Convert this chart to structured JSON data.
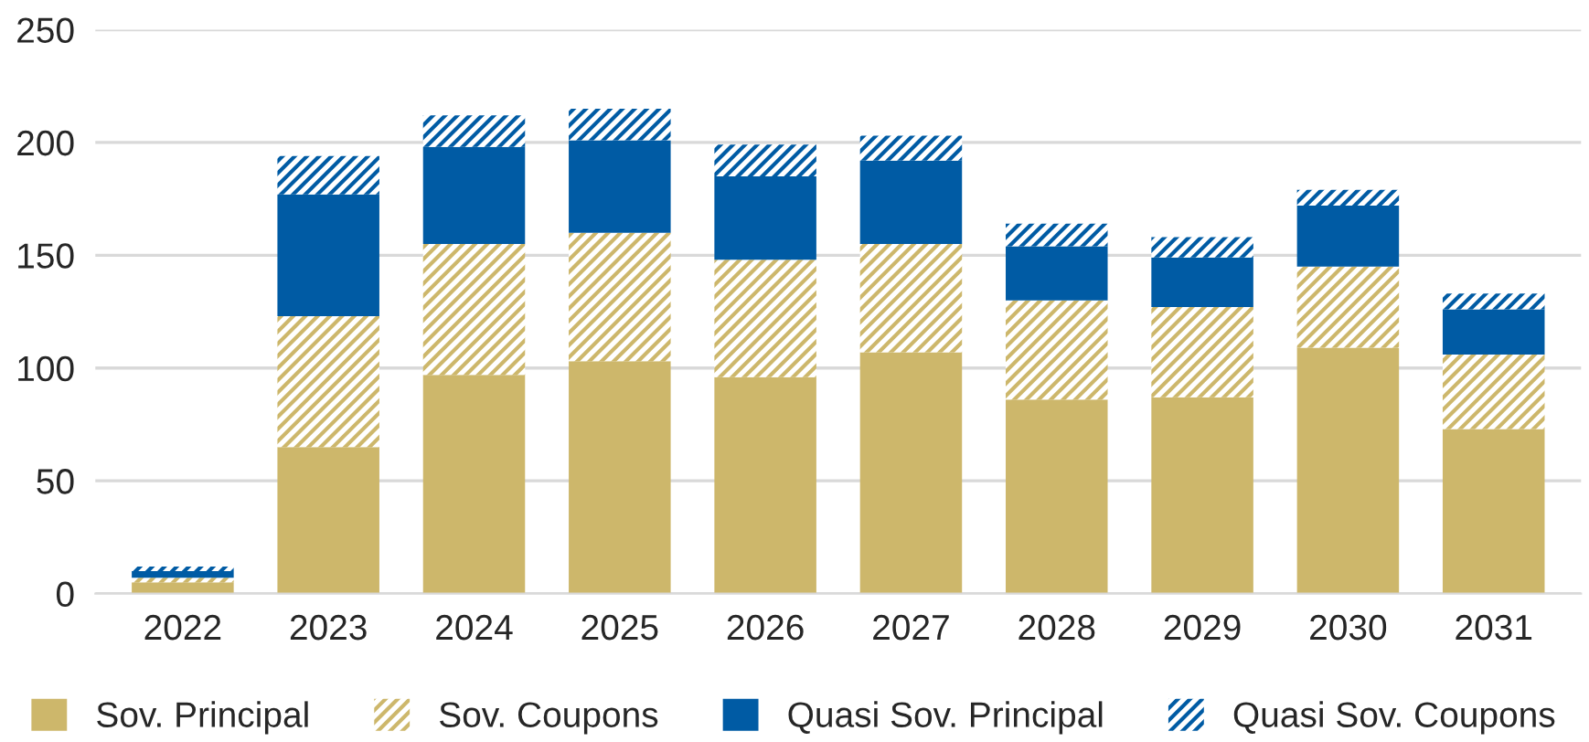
{
  "chart_data": {
    "type": "bar",
    "stacked": true,
    "categories": [
      "2022",
      "2023",
      "2024",
      "2025",
      "2026",
      "2027",
      "2028",
      "2029",
      "2030",
      "2031"
    ],
    "series": [
      {
        "name": "Sov. Principal",
        "color": "#cdb76b",
        "values": [
          5,
          65,
          97,
          103,
          96,
          107,
          86,
          87,
          109,
          73
        ]
      },
      {
        "name": "Sov. Coupons",
        "color": "#cdb76b",
        "values": [
          2,
          58,
          58,
          57,
          52,
          48,
          44,
          40,
          36,
          33
        ]
      },
      {
        "name": "Quasi Sov. Principal",
        "color": "#005ba4",
        "values": [
          3,
          54,
          43,
          41,
          37,
          37,
          24,
          22,
          27,
          20
        ]
      },
      {
        "name": "Quasi Sov. Coupons",
        "color": "#005ba4",
        "values": [
          2,
          17,
          14,
          14,
          14,
          11,
          10,
          9,
          7,
          7
        ]
      }
    ],
    "ylim": [
      0,
      250
    ],
    "yticks": [
      0,
      50,
      100,
      150,
      200,
      250
    ],
    "grid": "y",
    "legend": "bottom"
  }
}
